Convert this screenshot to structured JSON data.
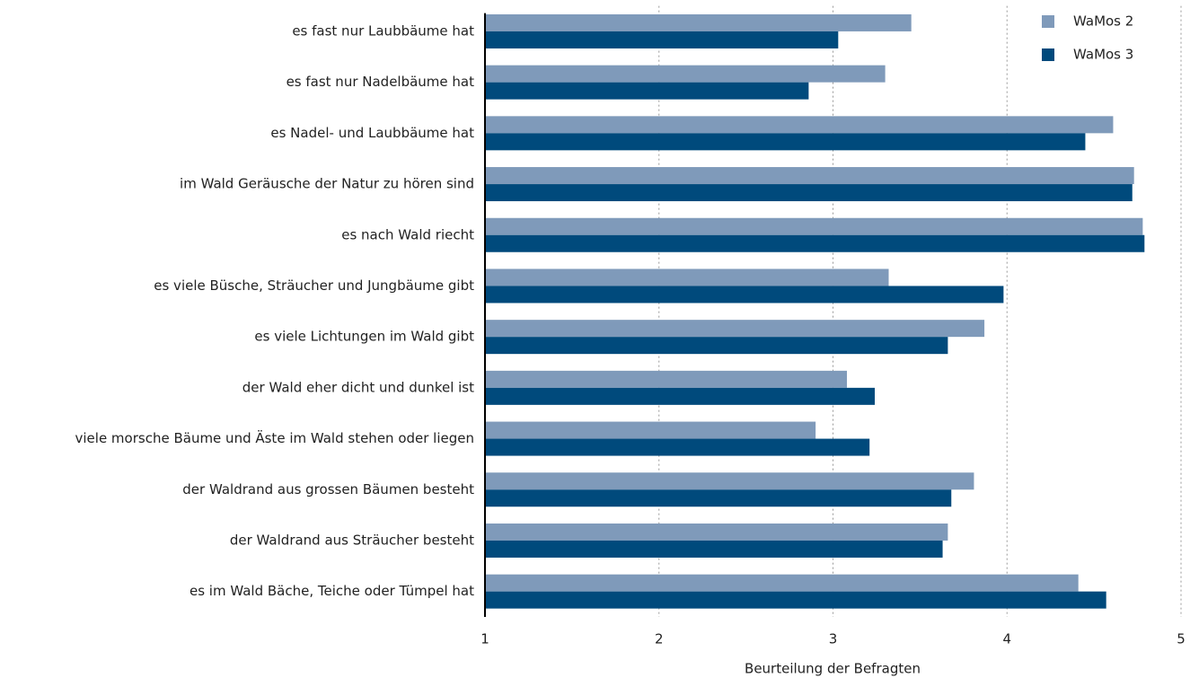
{
  "chart_data": {
    "type": "bar",
    "orientation": "horizontal",
    "xlabel": "Beurteilung der Befragten",
    "categories": [
      "es fast nur Laubbäume hat",
      "es fast nur Nadelbäume hat",
      "es Nadel- und Laubbäume hat",
      "im Wald Geräusche der Natur zu hören sind",
      "es nach Wald riecht",
      "es viele Büsche, Sträucher und Jungbäume gibt",
      "es viele Lichtungen im Wald gibt",
      "der Wald eher dicht und dunkel ist",
      "viele morsche Bäume und Äste im Wald stehen oder liegen",
      "der Waldrand aus grossen Bäumen besteht",
      "der Waldrand aus Sträucher besteht",
      "es im Wald Bäche, Teiche oder Tümpel hat"
    ],
    "series": [
      {
        "name": "WaMos 2",
        "color": "#7f9aba",
        "values": [
          3.45,
          3.3,
          4.61,
          4.73,
          4.78,
          3.32,
          3.87,
          3.08,
          2.9,
          3.81,
          3.66,
          4.41
        ]
      },
      {
        "name": "WaMos 3",
        "color": "#004a7c",
        "values": [
          3.03,
          2.86,
          4.45,
          4.72,
          4.79,
          3.98,
          3.66,
          3.24,
          3.21,
          3.68,
          3.63,
          4.57
        ]
      }
    ],
    "xlim": [
      1,
      5
    ],
    "xticks": [
      1,
      2,
      3,
      4,
      5
    ],
    "grid": true,
    "legend": "top-right"
  }
}
